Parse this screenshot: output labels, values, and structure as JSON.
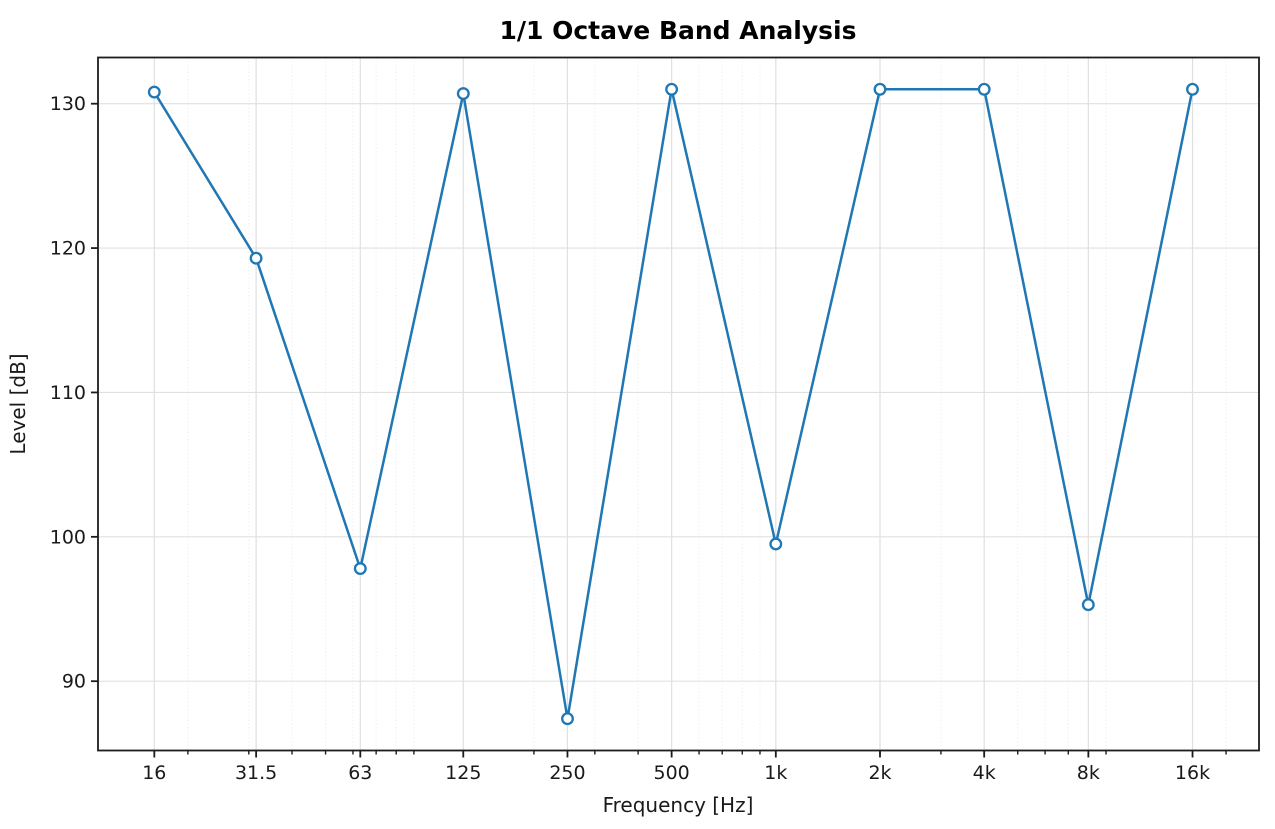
{
  "chart_data": {
    "type": "line",
    "title": "1/1 Octave Band Analysis",
    "xlabel": "Frequency [Hz]",
    "ylabel": "Level [dB]",
    "x_scale": "log",
    "categories": [
      "16",
      "31.5",
      "63",
      "125",
      "250",
      "500",
      "1k",
      "2k",
      "4k",
      "8k",
      "16k"
    ],
    "frequencies_hz": [
      16,
      31.5,
      63,
      125,
      250,
      500,
      1000,
      2000,
      4000,
      8000,
      16000
    ],
    "values_db": [
      130.8,
      119.3,
      97.8,
      130.7,
      87.4,
      131.0,
      99.5,
      131.0,
      131.0,
      95.3,
      131.0
    ],
    "yticks": [
      90,
      100,
      110,
      120,
      130
    ],
    "ylim": [
      85.2,
      133.2
    ],
    "xlim": [
      11,
      24900
    ],
    "grid": "major-solid-plus-minor-dotted-log-x",
    "legend": "none",
    "line_color": "#1f77b4",
    "marker": "open-circle",
    "marker_face": "#ffffff",
    "spine_color": "#1c1c1c",
    "major_grid_color": "#e0e0e0",
    "minor_grid_color": "#e9e9e9"
  }
}
